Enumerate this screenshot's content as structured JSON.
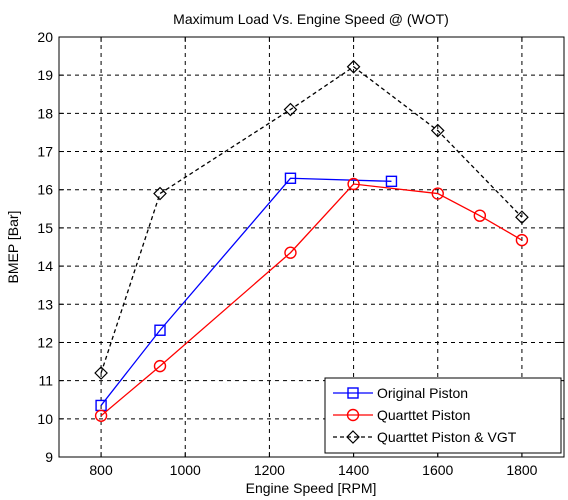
{
  "chart_data": {
    "type": "line",
    "title": "Maximum Load Vs. Engine Speed @ (WOT)",
    "xlabel": "Engine Speed [RPM]",
    "ylabel": "BMEP [Bar]",
    "xlim": [
      700,
      1900
    ],
    "ylim": [
      9,
      20
    ],
    "xticks": [
      800,
      1000,
      1200,
      1400,
      1600,
      1800
    ],
    "yticks": [
      9,
      10,
      11,
      12,
      13,
      14,
      15,
      16,
      17,
      18,
      19,
      20
    ],
    "grid": true,
    "grid_style": "dashed",
    "legend_position": "bottom-right",
    "series": [
      {
        "name": "Original Piston",
        "color": "#0000ff",
        "line_style": "solid",
        "marker": "square",
        "x": [
          800,
          940,
          1250,
          1490
        ],
        "y": [
          10.35,
          12.32,
          16.3,
          16.22
        ]
      },
      {
        "name": "Quarttet Piston",
        "color": "#ff0000",
        "line_style": "solid",
        "marker": "circle",
        "x": [
          800,
          940,
          1250,
          1400,
          1600,
          1700,
          1800
        ],
        "y": [
          10.08,
          11.38,
          14.35,
          16.15,
          15.9,
          15.32,
          14.68
        ]
      },
      {
        "name": "Quarttet Piston & VGT",
        "color": "#000000",
        "line_style": "dashed",
        "marker": "diamond",
        "x": [
          800,
          940,
          1250,
          1400,
          1600,
          1800
        ],
        "y": [
          11.2,
          15.9,
          18.1,
          19.22,
          17.55,
          15.28
        ]
      }
    ]
  }
}
